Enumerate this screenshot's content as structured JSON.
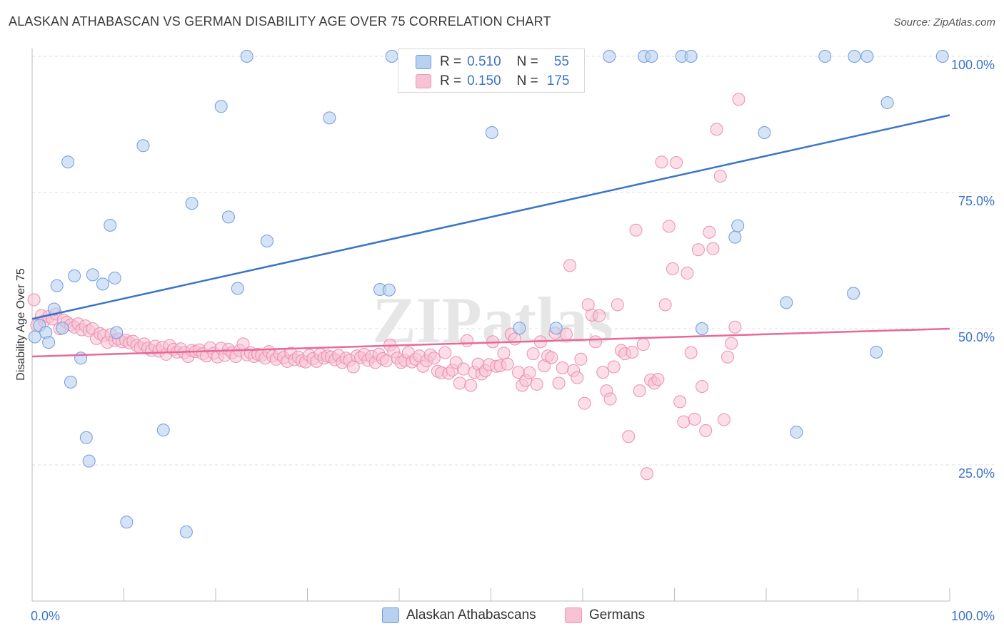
{
  "title": "ALASKAN ATHABASCAN VS GERMAN DISABILITY AGE OVER 75 CORRELATION CHART",
  "source": "Source: ZipAtlas.com",
  "watermark": "ZIPatlas",
  "colors": {
    "blue": "#3b74c9",
    "blue_fill": "#b9d1f0",
    "pink": "#e8689a",
    "pink_fill": "#f7c2d3",
    "grid": "#dddddd",
    "axis_text": "#3b74c9"
  },
  "legend": {
    "rows": [
      {
        "r_label": "R =",
        "r_value": "0.510",
        "n_label": "N =",
        "n_value": "55"
      },
      {
        "r_label": "R =",
        "r_value": "0.150",
        "n_label": "N =",
        "n_value": "175"
      }
    ]
  },
  "bottom_legend": {
    "items": [
      "Alaskan Athabascans",
      "Germans"
    ]
  },
  "chart_data": {
    "type": "scatter",
    "title": "ALASKAN ATHABASCAN VS GERMAN DISABILITY AGE OVER 75 CORRELATION CHART",
    "xlabel": "",
    "ylabel": "Disability Age Over 75",
    "xlim": [
      0,
      100
    ],
    "ylim": [
      0,
      100
    ],
    "x_tick_labels": [
      "0.0%",
      "100.0%"
    ],
    "y_ticks": [
      25,
      50,
      75,
      100
    ],
    "y_tick_labels": [
      "25.0%",
      "50.0%",
      "75.0%",
      "100.0%"
    ],
    "grid": true,
    "legend_position": "top-center",
    "series": [
      {
        "name": "Alaskan Athabascans",
        "color": "#3b74c9",
        "r": 0.51,
        "n": 55,
        "trend": {
          "x": [
            0,
            100
          ],
          "y": [
            51.8,
            89.2
          ]
        },
        "points": [
          [
            0.3,
            48.5
          ],
          [
            0.8,
            50.6
          ],
          [
            1.5,
            49.3
          ],
          [
            1.8,
            47.5
          ],
          [
            2.4,
            53.6
          ],
          [
            2.7,
            57.9
          ],
          [
            3.3,
            50.1
          ],
          [
            3.9,
            80.6
          ],
          [
            4.2,
            40.2
          ],
          [
            4.6,
            59.7
          ],
          [
            5.3,
            44.6
          ],
          [
            5.9,
            30.0
          ],
          [
            6.2,
            25.7
          ],
          [
            6.6,
            59.9
          ],
          [
            7.7,
            58.2
          ],
          [
            8.5,
            69.0
          ],
          [
            9.0,
            59.3
          ],
          [
            9.2,
            49.3
          ],
          [
            10.3,
            14.5
          ],
          [
            12.1,
            83.6
          ],
          [
            14.3,
            31.4
          ],
          [
            16.8,
            12.7
          ],
          [
            17.4,
            73.0
          ],
          [
            20.6,
            90.8
          ],
          [
            21.4,
            70.5
          ],
          [
            22.4,
            57.4
          ],
          [
            23.4,
            100
          ],
          [
            25.6,
            66.1
          ],
          [
            32.4,
            88.7
          ],
          [
            37.9,
            57.2
          ],
          [
            38.9,
            57.1
          ],
          [
            39.2,
            100
          ],
          [
            50.0,
            100
          ],
          [
            50.1,
            86.0
          ],
          [
            53.1,
            50.1
          ],
          [
            57.1,
            50.1
          ],
          [
            58.4,
            100
          ],
          [
            62.9,
            100
          ],
          [
            66.7,
            100
          ],
          [
            67.5,
            100
          ],
          [
            70.8,
            100
          ],
          [
            71.8,
            100
          ],
          [
            73.0,
            50.0
          ],
          [
            76.6,
            66.8
          ],
          [
            76.9,
            68.9
          ],
          [
            79.8,
            86.0
          ],
          [
            82.2,
            54.8
          ],
          [
            83.3,
            31.0
          ],
          [
            86.4,
            100
          ],
          [
            89.5,
            56.5
          ],
          [
            89.6,
            100
          ],
          [
            91.0,
            100
          ],
          [
            92.0,
            45.7
          ],
          [
            93.2,
            91.5
          ],
          [
            99.2,
            100
          ]
        ]
      },
      {
        "name": "Germans",
        "color": "#e8689a",
        "r": 0.15,
        "n": 175,
        "trend": {
          "x": [
            0,
            100
          ],
          "y": [
            44.9,
            50.0
          ]
        },
        "points": [
          [
            0.2,
            55.3
          ],
          [
            0.5,
            50.6
          ],
          [
            1.0,
            52.4
          ],
          [
            1.3,
            51.4
          ],
          [
            1.8,
            52.2
          ],
          [
            2.2,
            51.8
          ],
          [
            2.6,
            52.7
          ],
          [
            3.0,
            50.0
          ],
          [
            3.4,
            51.6
          ],
          [
            3.8,
            51.2
          ],
          [
            4.2,
            50.7
          ],
          [
            4.6,
            50.3
          ],
          [
            5.0,
            50.9
          ],
          [
            5.4,
            49.8
          ],
          [
            5.8,
            50.5
          ],
          [
            6.2,
            49.6
          ],
          [
            6.6,
            50.0
          ],
          [
            7.0,
            48.2
          ],
          [
            7.4,
            49.1
          ],
          [
            7.8,
            48.7
          ],
          [
            8.2,
            47.5
          ],
          [
            8.6,
            48.9
          ],
          [
            9.0,
            47.8
          ],
          [
            9.4,
            48.1
          ],
          [
            9.8,
            47.6
          ],
          [
            10.2,
            47.9
          ],
          [
            10.6,
            47.4
          ],
          [
            11.0,
            47.7
          ],
          [
            11.4,
            46.9
          ],
          [
            11.8,
            46.5
          ],
          [
            12.2,
            47.2
          ],
          [
            12.6,
            46.4
          ],
          [
            13.0,
            46.0
          ],
          [
            13.4,
            46.8
          ],
          [
            13.8,
            45.9
          ],
          [
            14.2,
            46.6
          ],
          [
            14.6,
            45.3
          ],
          [
            15.0,
            46.9
          ],
          [
            15.4,
            46.2
          ],
          [
            15.8,
            45.7
          ],
          [
            16.2,
            46.3
          ],
          [
            16.6,
            45.6
          ],
          [
            17.0,
            44.9
          ],
          [
            17.4,
            46.0
          ],
          [
            17.8,
            45.8
          ],
          [
            18.2,
            46.1
          ],
          [
            18.6,
            45.4
          ],
          [
            19.0,
            45.0
          ],
          [
            19.4,
            46.5
          ],
          [
            19.8,
            45.5
          ],
          [
            20.2,
            44.8
          ],
          [
            20.6,
            46.4
          ],
          [
            21.0,
            45.1
          ],
          [
            21.4,
            46.2
          ],
          [
            21.8,
            45.6
          ],
          [
            22.2,
            44.9
          ],
          [
            22.6,
            46.0
          ],
          [
            23.0,
            47.2
          ],
          [
            23.4,
            45.2
          ],
          [
            23.8,
            45.6
          ],
          [
            24.2,
            44.9
          ],
          [
            24.6,
            45.3
          ],
          [
            25.0,
            45.1
          ],
          [
            25.4,
            44.6
          ],
          [
            25.8,
            45.8
          ],
          [
            26.2,
            45.0
          ],
          [
            26.6,
            44.4
          ],
          [
            27.0,
            45.3
          ],
          [
            27.4,
            44.7
          ],
          [
            27.8,
            44.0
          ],
          [
            28.2,
            45.5
          ],
          [
            28.6,
            44.3
          ],
          [
            29.0,
            44.8
          ],
          [
            29.4,
            44.1
          ],
          [
            29.8,
            43.9
          ],
          [
            30.2,
            45.1
          ],
          [
            30.6,
            44.5
          ],
          [
            31.0,
            44.0
          ],
          [
            31.4,
            45.3
          ],
          [
            31.8,
            44.6
          ],
          [
            32.2,
            45.0
          ],
          [
            32.6,
            44.8
          ],
          [
            33.0,
            44.3
          ],
          [
            33.4,
            45.1
          ],
          [
            33.8,
            43.8
          ],
          [
            34.2,
            44.6
          ],
          [
            34.6,
            44.2
          ],
          [
            35.0,
            43.0
          ],
          [
            35.4,
            45.0
          ],
          [
            35.8,
            44.7
          ],
          [
            36.2,
            45.3
          ],
          [
            36.6,
            44.2
          ],
          [
            37.0,
            44.9
          ],
          [
            37.4,
            43.8
          ],
          [
            37.8,
            45.3
          ],
          [
            38.2,
            44.5
          ],
          [
            38.6,
            44.1
          ],
          [
            39.0,
            47.0
          ],
          [
            39.4,
            45.8
          ],
          [
            39.8,
            44.6
          ],
          [
            40.2,
            43.8
          ],
          [
            40.6,
            44.2
          ],
          [
            41.0,
            45.6
          ],
          [
            41.4,
            43.9
          ],
          [
            41.8,
            44.4
          ],
          [
            42.2,
            45.0
          ],
          [
            42.6,
            43.1
          ],
          [
            43.0,
            44.1
          ],
          [
            43.4,
            45.2
          ],
          [
            43.8,
            44.6
          ],
          [
            44.2,
            42.2
          ],
          [
            44.6,
            41.9
          ],
          [
            45.0,
            45.6
          ],
          [
            45.4,
            41.8
          ],
          [
            45.8,
            42.4
          ],
          [
            46.2,
            43.8
          ],
          [
            46.6,
            40.0
          ],
          [
            47.0,
            42.6
          ],
          [
            47.4,
            47.8
          ],
          [
            47.8,
            39.6
          ],
          [
            48.2,
            42.0
          ],
          [
            48.6,
            43.5
          ],
          [
            49.0,
            41.7
          ],
          [
            49.4,
            42.3
          ],
          [
            49.8,
            43.4
          ],
          [
            50.2,
            47.6
          ],
          [
            50.6,
            43.1
          ],
          [
            51.0,
            43.2
          ],
          [
            51.4,
            45.5
          ],
          [
            51.8,
            43.5
          ],
          [
            52.2,
            49.0
          ],
          [
            52.6,
            48.1
          ],
          [
            53.0,
            42.0
          ],
          [
            53.4,
            39.6
          ],
          [
            53.8,
            40.5
          ],
          [
            54.2,
            41.9
          ],
          [
            54.6,
            45.4
          ],
          [
            55.0,
            39.8
          ],
          [
            55.4,
            47.6
          ],
          [
            55.8,
            43.2
          ],
          [
            56.2,
            45.0
          ],
          [
            56.6,
            44.7
          ],
          [
            57.0,
            49.2
          ],
          [
            57.4,
            40.0
          ],
          [
            57.8,
            42.8
          ],
          [
            58.2,
            49.0
          ],
          [
            58.6,
            61.6
          ],
          [
            59.0,
            42.3
          ],
          [
            59.4,
            41.0
          ],
          [
            59.8,
            44.4
          ],
          [
            60.2,
            36.3
          ],
          [
            60.6,
            54.4
          ],
          [
            61.0,
            52.5
          ],
          [
            61.4,
            47.6
          ],
          [
            61.8,
            52.4
          ],
          [
            62.2,
            42.0
          ],
          [
            62.6,
            38.6
          ],
          [
            63.0,
            37.1
          ],
          [
            63.4,
            43.0
          ],
          [
            63.8,
            54.4
          ],
          [
            64.2,
            46.0
          ],
          [
            64.6,
            45.4
          ],
          [
            65.0,
            30.2
          ],
          [
            65.4,
            45.7
          ],
          [
            65.8,
            68.1
          ],
          [
            66.2,
            38.6
          ],
          [
            66.6,
            47.1
          ],
          [
            67.0,
            23.4
          ],
          [
            67.4,
            40.6
          ],
          [
            67.8,
            40.0
          ],
          [
            68.2,
            40.7
          ],
          [
            68.6,
            80.6
          ],
          [
            69.0,
            54.4
          ],
          [
            69.4,
            68.8
          ],
          [
            69.8,
            61.0
          ],
          [
            70.2,
            80.5
          ],
          [
            70.6,
            36.6
          ],
          [
            71.0,
            32.9
          ],
          [
            71.4,
            60.2
          ],
          [
            71.8,
            45.6
          ],
          [
            72.2,
            33.4
          ],
          [
            72.6,
            64.5
          ],
          [
            73.0,
            39.4
          ],
          [
            73.4,
            31.3
          ],
          [
            73.8,
            67.7
          ],
          [
            74.2,
            64.7
          ],
          [
            74.6,
            86.6
          ],
          [
            75.0,
            78.0
          ],
          [
            75.4,
            33.3
          ],
          [
            75.8,
            44.8
          ],
          [
            76.2,
            47.3
          ],
          [
            76.6,
            50.3
          ],
          [
            77.0,
            92.1
          ]
        ]
      }
    ]
  }
}
